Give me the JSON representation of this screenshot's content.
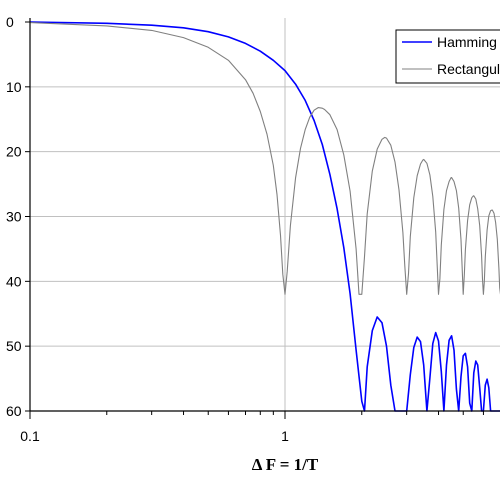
{
  "chart_data": {
    "type": "line",
    "xlabel": "Δ F = 1/T",
    "ylabel": "",
    "x_scale": "log",
    "xlim": [
      0.1,
      8
    ],
    "ylim": [
      0,
      60
    ],
    "y_inverted": true,
    "grid": true,
    "legend_position": "top-right",
    "x_ticks": [
      "0.1",
      "1"
    ],
    "y_ticks": [
      "0",
      "10",
      "20",
      "30",
      "40",
      "50",
      "60"
    ],
    "series": [
      {
        "name": "Hamming",
        "color": "#0000ff",
        "x": [
          0.1,
          0.2,
          0.3,
          0.4,
          0.5,
          0.6,
          0.7,
          0.8,
          0.9,
          1.0,
          1.1,
          1.2,
          1.3,
          1.4,
          1.5,
          1.6,
          1.7,
          1.8,
          1.9,
          2.0,
          2.05,
          2.1,
          2.2,
          2.3,
          2.4,
          2.5,
          2.6,
          2.7,
          2.8,
          2.9,
          3.0,
          3.1,
          3.2,
          3.3,
          3.4,
          3.5,
          3.6,
          3.7,
          3.8,
          3.9,
          4.0,
          4.1,
          4.2,
          4.3,
          4.4,
          4.5,
          4.6,
          4.7,
          4.8,
          4.9,
          5.0,
          5.1,
          5.2,
          5.3,
          5.4,
          5.5,
          5.6,
          5.7,
          5.8,
          5.9,
          6.0,
          6.1,
          6.2,
          6.3,
          6.4,
          6.5,
          6.6,
          6.7,
          6.8,
          6.9,
          7.0
        ],
        "y": [
          0.0,
          0.2,
          0.5,
          0.9,
          1.5,
          2.3,
          3.3,
          4.5,
          5.9,
          7.5,
          9.6,
          12.1,
          15.2,
          18.9,
          23.5,
          28.8,
          34.8,
          41.9,
          50.6,
          58.5,
          60.0,
          53.2,
          47.6,
          45.5,
          46.4,
          50.0,
          56.0,
          60.0,
          60.0,
          60.0,
          60.0,
          54.4,
          50.2,
          48.6,
          49.3,
          52.9,
          60.0,
          54.9,
          49.6,
          47.9,
          49.2,
          53.9,
          60.0,
          52.9,
          49.1,
          48.4,
          50.6,
          56.6,
          60.0,
          54.7,
          51.5,
          51.1,
          53.2,
          58.8,
          60.0,
          54.1,
          52.3,
          52.9,
          56.4,
          60.0,
          60.0,
          56.0,
          55.1,
          56.4,
          60.0,
          60.0,
          60.0,
          60.0,
          60.0,
          60.0,
          60.0
        ]
      },
      {
        "name": "Rectangular",
        "color": "#808080",
        "x": [
          0.1,
          0.2,
          0.3,
          0.4,
          0.5,
          0.6,
          0.7,
          0.75,
          0.8,
          0.85,
          0.9,
          0.93,
          0.96,
          0.98,
          1.0,
          1.02,
          1.05,
          1.1,
          1.15,
          1.2,
          1.25,
          1.3,
          1.35,
          1.4,
          1.43,
          1.5,
          1.6,
          1.7,
          1.8,
          1.9,
          1.95,
          2.0,
          2.05,
          2.1,
          2.2,
          2.3,
          2.4,
          2.46,
          2.5,
          2.6,
          2.7,
          2.8,
          2.9,
          2.95,
          3.0,
          3.05,
          3.1,
          3.2,
          3.3,
          3.4,
          3.47,
          3.5,
          3.6,
          3.7,
          3.8,
          3.9,
          3.95,
          4.0,
          4.05,
          4.1,
          4.2,
          4.3,
          4.4,
          4.48,
          4.5,
          4.6,
          4.7,
          4.8,
          4.9,
          4.95,
          5.0,
          5.05,
          5.1,
          5.2,
          5.3,
          5.4,
          5.48,
          5.5,
          5.6,
          5.7,
          5.8,
          5.9,
          5.95,
          6.0,
          6.05,
          6.1,
          6.2,
          6.3,
          6.4,
          6.48,
          6.5,
          6.6,
          6.7,
          6.8,
          6.9,
          6.95,
          7.0
        ],
        "y": [
          0.1,
          0.6,
          1.3,
          2.4,
          3.9,
          5.9,
          8.9,
          11.0,
          13.8,
          17.3,
          22.1,
          26.6,
          32.9,
          38.9,
          42.0,
          38.5,
          31.4,
          24.0,
          19.5,
          16.6,
          14.7,
          13.6,
          13.2,
          13.3,
          13.5,
          14.3,
          16.6,
          20.5,
          26.1,
          35.0,
          42.0,
          42.0,
          36.2,
          29.6,
          23.0,
          19.6,
          18.1,
          17.8,
          17.9,
          19.0,
          21.6,
          25.9,
          32.5,
          37.6,
          42.0,
          38.8,
          33.1,
          27.1,
          23.7,
          21.9,
          21.3,
          21.2,
          21.8,
          23.6,
          26.9,
          32.4,
          37.2,
          42.0,
          39.6,
          34.4,
          28.9,
          26.0,
          24.6,
          24.0,
          24.0,
          24.6,
          26.0,
          28.7,
          33.6,
          37.7,
          42.0,
          39.1,
          35.1,
          30.6,
          28.2,
          27.1,
          26.8,
          26.8,
          27.3,
          28.8,
          31.4,
          36.1,
          39.7,
          42.0,
          40.1,
          36.2,
          32.1,
          29.9,
          29.1,
          29.0,
          29.0,
          29.5,
          30.9,
          33.5,
          38.0,
          41.0,
          42.0
        ]
      }
    ]
  }
}
